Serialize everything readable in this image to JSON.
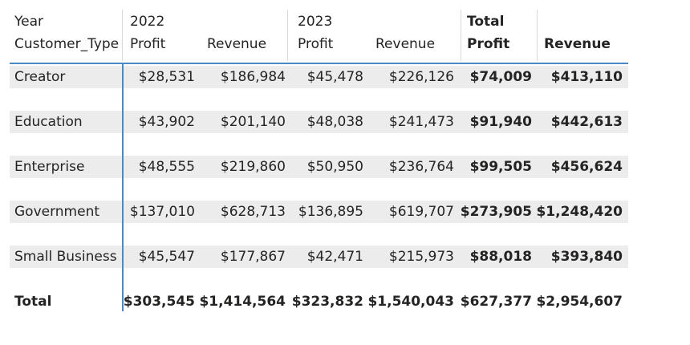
{
  "chart_data": {
    "type": "table",
    "header": {
      "year_label": "Year",
      "row_label": "Customer_Type",
      "years": [
        "2022",
        "2023"
      ],
      "total_label": "Total",
      "measures": [
        "Profit",
        "Revenue"
      ]
    },
    "rows": [
      {
        "label": "Creator",
        "values": [
          "$28,531",
          "$186,984",
          "$45,478",
          "$226,126",
          "$74,009",
          "$413,110"
        ]
      },
      {
        "label": "Education",
        "values": [
          "$43,902",
          "$201,140",
          "$48,038",
          "$241,473",
          "$91,940",
          "$442,613"
        ]
      },
      {
        "label": "Enterprise",
        "values": [
          "$48,555",
          "$219,860",
          "$50,950",
          "$236,764",
          "$99,505",
          "$456,624"
        ]
      },
      {
        "label": "Government",
        "values": [
          "$137,010",
          "$628,713",
          "$136,895",
          "$619,707",
          "$273,905",
          "$1,248,420"
        ]
      },
      {
        "label": "Small Business",
        "values": [
          "$45,547",
          "$177,867",
          "$42,471",
          "$215,973",
          "$88,018",
          "$393,840"
        ]
      }
    ],
    "total_row": {
      "label": "Total",
      "values": [
        "$303,545",
        "$1,414,564",
        "$323,832",
        "$1,540,043",
        "$627,377",
        "$2,954,607"
      ]
    }
  }
}
